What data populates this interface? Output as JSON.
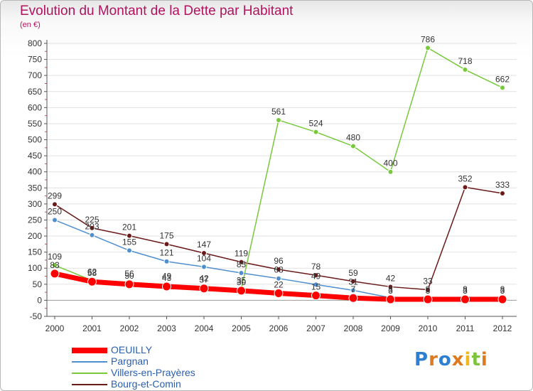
{
  "title": "Evolution du Montant de la Dette par Habitant",
  "subtitle": "(en €)",
  "logo": {
    "text": "Proxiti",
    "letters": [
      "P",
      "r",
      "o",
      "x",
      "i",
      "t",
      "i"
    ],
    "colors": [
      "#2f7fd0",
      "#e07a1f",
      "#2f7fd0",
      "#e07a1f",
      "#f0b81a",
      "#7cc43a",
      "#e07a1f"
    ]
  },
  "chart_data": {
    "type": "line",
    "title": "Evolution du Montant de la Dette par Habitant",
    "subtitle": "(en €)",
    "x": [
      "2000",
      "2001",
      "2002",
      "2003",
      "2004",
      "2005",
      "2006",
      "2007",
      "2008",
      "2009",
      "2010",
      "2011",
      "2012"
    ],
    "ylim": [
      -50,
      800
    ],
    "yticks": [
      "-50",
      "0",
      "50",
      "100",
      "150",
      "200",
      "250",
      "300",
      "350",
      "400",
      "450",
      "500",
      "550",
      "600",
      "650",
      "700",
      "750",
      "800"
    ],
    "grid": true,
    "legend_position": "bottom-left",
    "series": [
      {
        "name": "Bourg-et-Comin",
        "color": "#6b1a1a",
        "values": [
          299,
          225,
          201,
          175,
          147,
          119,
          96,
          78,
          59,
          42,
          33,
          352,
          333
        ],
        "labels": [
          "299",
          "225",
          "201",
          "175",
          "147",
          "119",
          "96",
          "78",
          "59",
          "42",
          "33",
          "352",
          "333"
        ]
      },
      {
        "name": "Villers-en-Prayères",
        "color": "#78c93c",
        "values": [
          109,
          62,
          56,
          49,
          42,
          35,
          561,
          524,
          480,
          400,
          786,
          718,
          662
        ],
        "labels": [
          "109",
          "62",
          "56",
          "49",
          "42",
          "35",
          "561",
          "524",
          "480",
          "400",
          "786",
          "718",
          "662"
        ]
      },
      {
        "name": "Pargnan",
        "color": "#4f8fcf",
        "values": [
          250,
          203,
          155,
          121,
          104,
          85,
          68,
          49,
          31,
          8,
          8,
          8,
          8
        ],
        "labels": [
          "250",
          "203",
          "155",
          "121",
          "104",
          "85",
          "68",
          "49",
          "31",
          "8",
          "8",
          "8",
          "8"
        ]
      },
      {
        "name": "OEUILLY",
        "color": "#ff0000",
        "values": [
          83,
          58,
          50,
          43,
          37,
          30,
          22,
          15,
          7,
          3,
          3,
          3,
          3
        ],
        "labels": [
          "83",
          "58",
          "50",
          "43",
          "37",
          "30",
          "22",
          "15",
          "7",
          "3",
          "3",
          "3",
          "3"
        ]
      }
    ]
  }
}
